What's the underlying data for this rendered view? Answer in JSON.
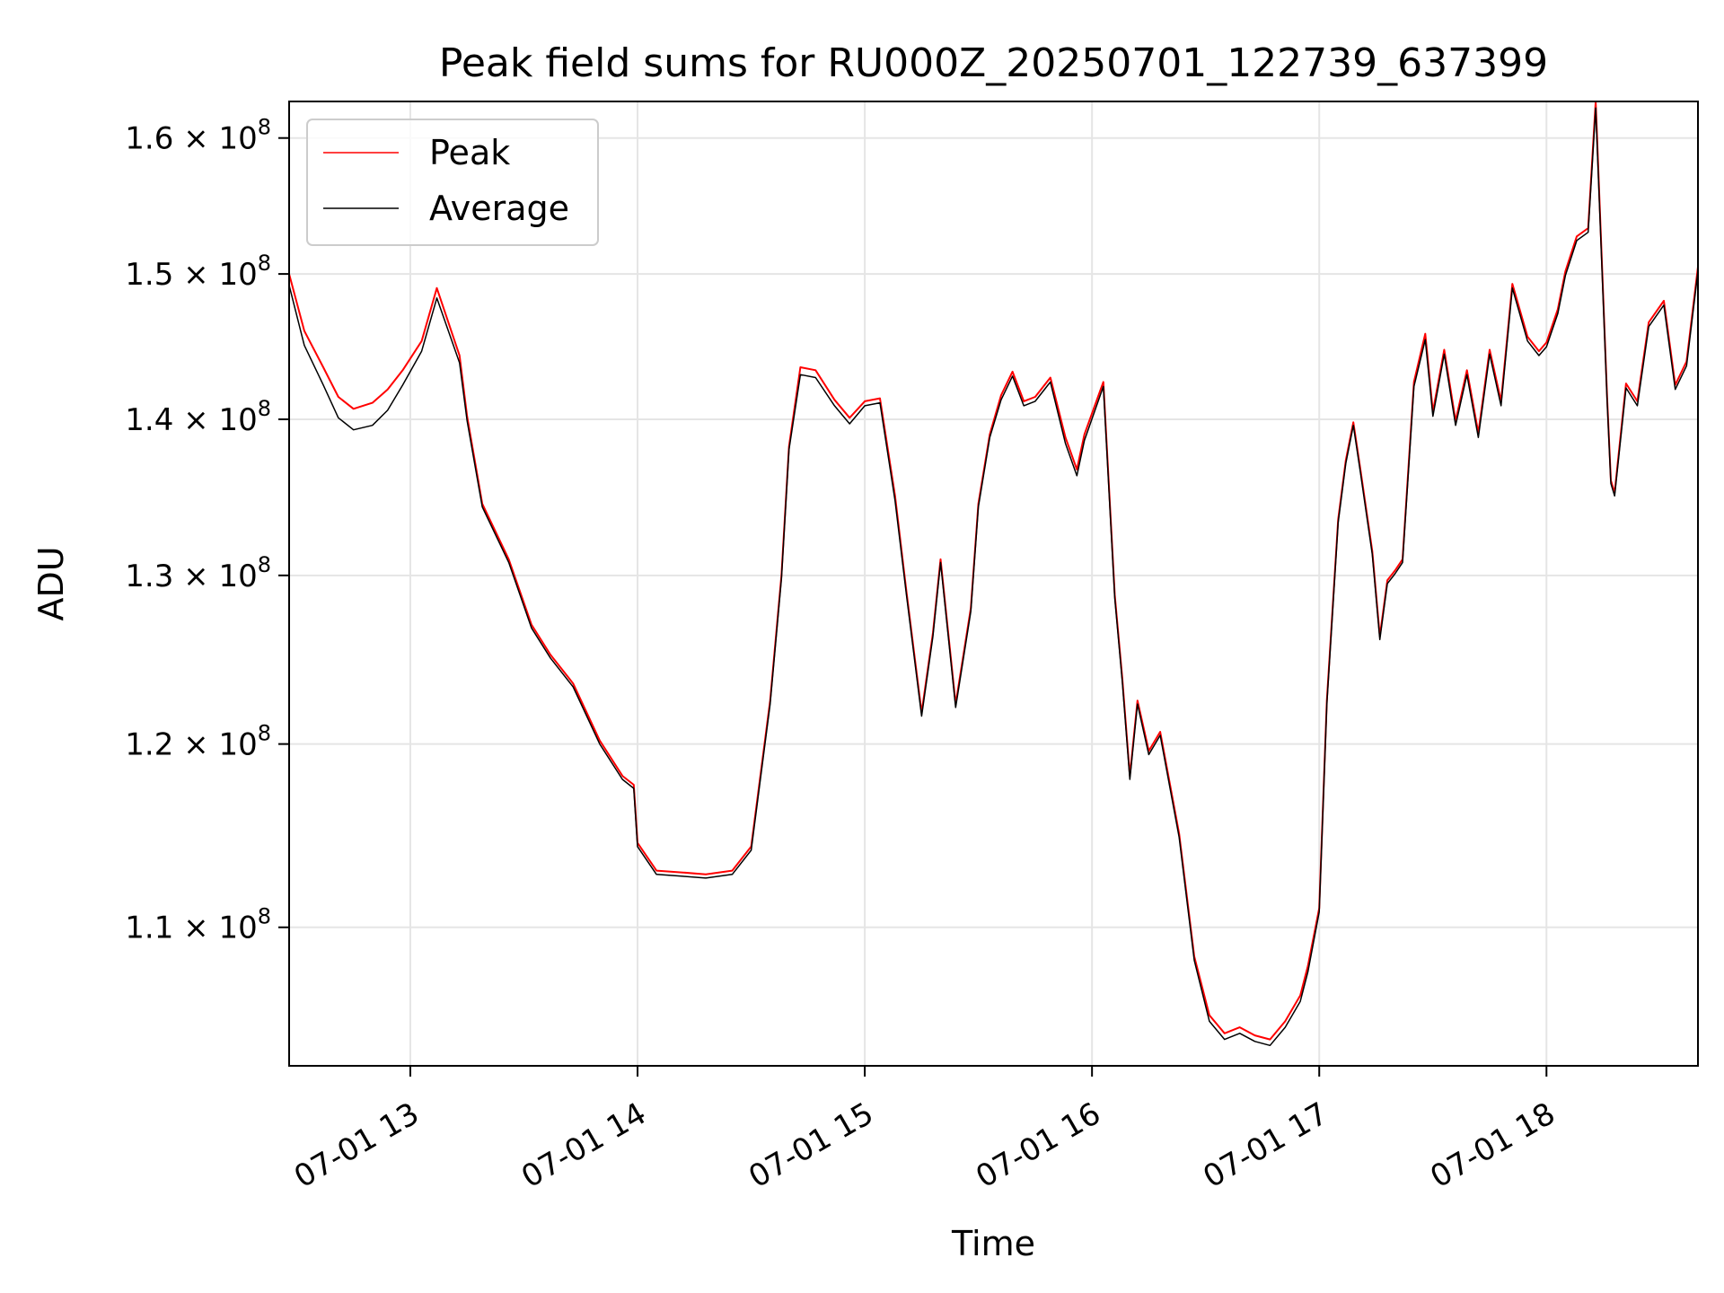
{
  "chart_data": {
    "type": "line",
    "title": "Peak field sums for RU000Z_20250701_122739_637399",
    "xlabel": "Time",
    "ylabel": "ADU",
    "y_scale": "log",
    "grid": true,
    "legend_position": "top-left",
    "xlim": [
      "2025-07-01 12:28",
      "2025-07-01 18:40"
    ],
    "ylim": [
      103000000,
      162800000
    ],
    "x_ticks": [
      {
        "value": "2025-07-01 13:00",
        "label": "07-01 13"
      },
      {
        "value": "2025-07-01 14:00",
        "label": "07-01 14"
      },
      {
        "value": "2025-07-01 15:00",
        "label": "07-01 15"
      },
      {
        "value": "2025-07-01 16:00",
        "label": "07-01 16"
      },
      {
        "value": "2025-07-01 17:00",
        "label": "07-01 17"
      },
      {
        "value": "2025-07-01 18:00",
        "label": "07-01 18"
      }
    ],
    "y_ticks": [
      {
        "value": 110000000,
        "mant": "1.1"
      },
      {
        "value": 120000000,
        "mant": "1.2"
      },
      {
        "value": 130000000,
        "mant": "1.3"
      },
      {
        "value": 140000000,
        "mant": "1.4"
      },
      {
        "value": 150000000,
        "mant": "1.5"
      },
      {
        "value": 160000000,
        "mant": "1.6"
      }
    ],
    "y_tick_suffix": "× 10",
    "y_tick_exponent": "8",
    "series": [
      {
        "name": "Peak",
        "color": "#ff0000",
        "x": [
          "12:28",
          "12:32",
          "12:37",
          "12:41",
          "12:45",
          "12:50",
          "12:54",
          "12:58",
          "13:03",
          "13:07",
          "13:13",
          "13:15",
          "13:19",
          "13:26",
          "13:32",
          "13:37",
          "13:43",
          "13:50",
          "13:56",
          "13:59",
          "14:00",
          "14:05",
          "14:12",
          "14:18",
          "14:25",
          "14:30",
          "14:35",
          "14:38",
          "14:40",
          "14:43",
          "14:47",
          "14:52",
          "14:56",
          "15:00",
          "15:04",
          "15:08",
          "15:11",
          "15:15",
          "15:18",
          "15:20",
          "15:24",
          "15:28",
          "15:30",
          "15:33",
          "15:36",
          "15:39",
          "15:42",
          "15:45",
          "15:49",
          "15:53",
          "15:56",
          "15:58",
          "16:03",
          "16:06",
          "16:08",
          "16:10",
          "16:12",
          "16:15",
          "16:18",
          "16:23",
          "16:27",
          "16:31",
          "16:35",
          "16:39",
          "16:43",
          "16:47",
          "16:51",
          "16:55",
          "16:57",
          "17:00",
          "17:02",
          "17:05",
          "17:07",
          "17:09",
          "17:11",
          "17:14",
          "17:16",
          "17:18",
          "17:20",
          "17:22",
          "17:25",
          "17:28",
          "17:30",
          "17:33",
          "17:36",
          "17:39",
          "17:42",
          "17:45",
          "17:48",
          "17:51",
          "17:55",
          "17:58",
          "18:00",
          "18:03",
          "18:05",
          "18:08",
          "18:11",
          "18:13",
          "18:16",
          "18:17",
          "18:18",
          "18:21",
          "18:24",
          "18:27",
          "18:31",
          "18:34",
          "18:37",
          "18:40"
        ],
        "values": [
          150000000,
          146000000,
          143500000,
          141500000,
          140700000,
          141100000,
          142000000,
          143300000,
          145300000,
          149000000,
          144300000,
          140200000,
          134500000,
          131000000,
          127000000,
          125200000,
          123500000,
          120200000,
          118200000,
          117700000,
          114500000,
          113000000,
          112900000,
          112800000,
          113000000,
          114300000,
          122500000,
          130000000,
          138200000,
          143500000,
          143300000,
          141300000,
          140100000,
          141200000,
          141400000,
          135000000,
          129000000,
          121800000,
          126500000,
          131000000,
          122300000,
          128000000,
          134500000,
          139000000,
          141600000,
          143200000,
          141200000,
          141500000,
          142800000,
          138800000,
          136700000,
          139000000,
          142500000,
          128800000,
          123800000,
          118200000,
          122500000,
          119600000,
          120700000,
          115000000,
          108500000,
          105500000,
          104600000,
          104900000,
          104500000,
          104300000,
          105200000,
          106500000,
          108000000,
          111000000,
          122500000,
          133500000,
          137300000,
          139800000,
          136500000,
          131500000,
          126300000,
          129700000,
          130300000,
          131000000,
          142500000,
          145800000,
          140500000,
          144700000,
          139900000,
          143300000,
          139100000,
          144700000,
          141200000,
          149300000,
          145600000,
          144600000,
          145200000,
          147500000,
          150200000,
          152700000,
          153300000,
          162800000,
          141500000,
          136000000,
          135200000,
          142400000,
          141200000,
          146600000,
          148100000,
          142300000,
          143900000,
          150500000
        ]
      },
      {
        "name": "Average",
        "color": "#000000",
        "x": [
          "12:28",
          "12:32",
          "12:37",
          "12:41",
          "12:45",
          "12:50",
          "12:54",
          "12:58",
          "13:03",
          "13:07",
          "13:13",
          "13:15",
          "13:19",
          "13:26",
          "13:32",
          "13:37",
          "13:43",
          "13:50",
          "13:56",
          "13:59",
          "14:00",
          "14:05",
          "14:12",
          "14:18",
          "14:25",
          "14:30",
          "14:35",
          "14:38",
          "14:40",
          "14:43",
          "14:47",
          "14:52",
          "14:56",
          "15:00",
          "15:04",
          "15:08",
          "15:11",
          "15:15",
          "15:18",
          "15:20",
          "15:24",
          "15:28",
          "15:30",
          "15:33",
          "15:36",
          "15:39",
          "15:42",
          "15:45",
          "15:49",
          "15:53",
          "15:56",
          "15:58",
          "16:03",
          "16:06",
          "16:08",
          "16:10",
          "16:12",
          "16:15",
          "16:18",
          "16:23",
          "16:27",
          "16:31",
          "16:35",
          "16:39",
          "16:43",
          "16:47",
          "16:51",
          "16:55",
          "16:57",
          "17:00",
          "17:02",
          "17:05",
          "17:07",
          "17:09",
          "17:11",
          "17:14",
          "17:16",
          "17:18",
          "17:20",
          "17:22",
          "17:25",
          "17:28",
          "17:30",
          "17:33",
          "17:36",
          "17:39",
          "17:42",
          "17:45",
          "17:48",
          "17:51",
          "17:55",
          "17:58",
          "18:00",
          "18:03",
          "18:05",
          "18:08",
          "18:11",
          "18:13",
          "18:16",
          "18:17",
          "18:18",
          "18:21",
          "18:24",
          "18:27",
          "18:31",
          "18:34",
          "18:37",
          "18:40"
        ],
        "values": [
          149200000,
          145000000,
          142300000,
          140100000,
          139300000,
          139600000,
          140600000,
          142300000,
          144600000,
          148300000,
          143800000,
          139900000,
          134300000,
          130800000,
          126800000,
          125000000,
          123300000,
          120000000,
          118000000,
          117500000,
          114300000,
          112800000,
          112700000,
          112600000,
          112800000,
          114100000,
          122300000,
          129800000,
          138000000,
          143000000,
          142800000,
          140900000,
          139700000,
          140900000,
          141100000,
          134700000,
          128800000,
          121600000,
          126300000,
          130800000,
          122100000,
          127800000,
          134300000,
          138800000,
          141300000,
          142900000,
          140900000,
          141200000,
          142500000,
          138400000,
          136300000,
          138600000,
          142200000,
          128600000,
          123600000,
          118000000,
          122300000,
          119400000,
          120500000,
          114800000,
          108300000,
          105200000,
          104300000,
          104600000,
          104200000,
          104000000,
          104900000,
          106200000,
          107700000,
          110800000,
          122300000,
          133300000,
          137100000,
          139600000,
          136300000,
          131300000,
          126100000,
          129500000,
          130100000,
          130800000,
          142200000,
          145400000,
          140200000,
          144400000,
          139600000,
          143000000,
          138800000,
          144400000,
          140900000,
          149000000,
          145300000,
          144300000,
          144900000,
          147200000,
          149900000,
          152400000,
          153000000,
          162300000,
          141300000,
          135800000,
          135000000,
          142100000,
          140900000,
          146300000,
          147800000,
          142000000,
          143600000,
          150200000
        ]
      }
    ]
  }
}
